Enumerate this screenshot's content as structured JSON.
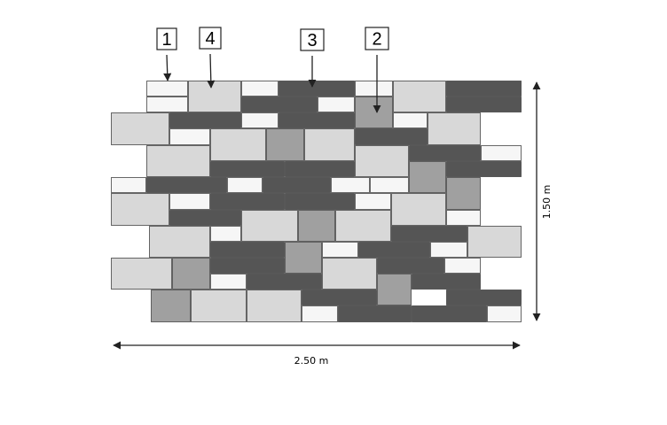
{
  "callouts": [
    "1",
    "4",
    "3",
    "2"
  ],
  "dimensions": {
    "height": "1.50 m",
    "width": "2.50 m"
  }
}
